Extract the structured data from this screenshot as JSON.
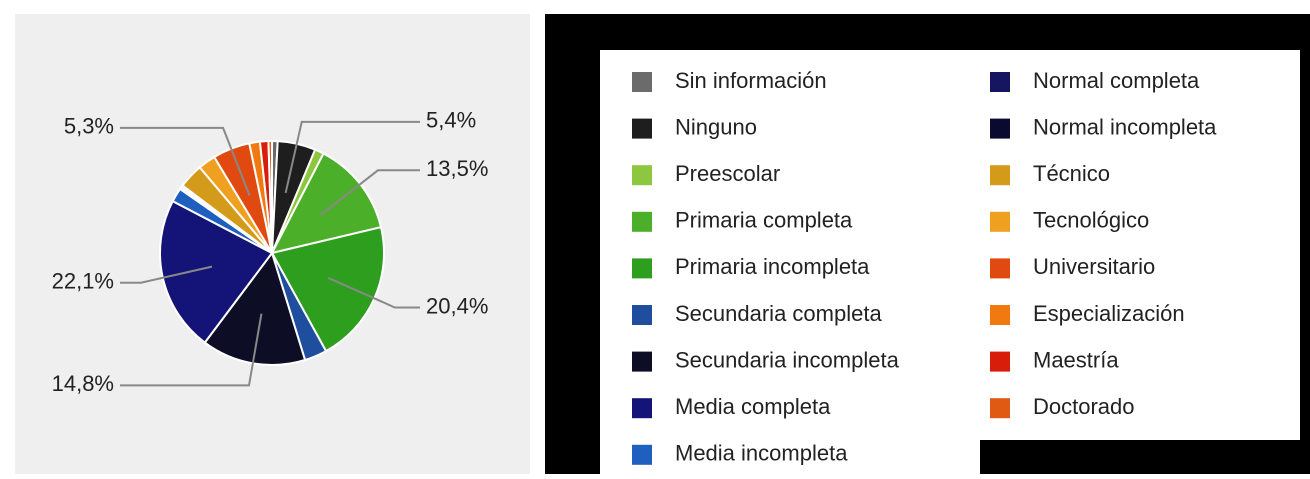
{
  "chart_data": {
    "type": "pie",
    "categories": [
      "Sin información",
      "Ninguno",
      "Preescolar",
      "Primaria completa",
      "Primaria incompleta",
      "Secundaria completa",
      "Secundaria incompleta",
      "Media completa",
      "Media incompleta",
      "Normal completa",
      "Normal incompleta",
      "Técnico",
      "Tecnológico",
      "Universitario",
      "Especialización",
      "Maestría",
      "Doctorado"
    ],
    "values": [
      0.8,
      5.4,
      1.3,
      13.5,
      20.4,
      3.2,
      14.8,
      22.1,
      2.0,
      0.3,
      0.3,
      3.5,
      2.5,
      5.3,
      1.5,
      1.2,
      0.5
    ],
    "value_labels": [
      null,
      "5,4%",
      null,
      "13,5%",
      "20,4%",
      null,
      "14,8%",
      "22,1%",
      null,
      null,
      null,
      null,
      null,
      "5,3%",
      null,
      null,
      null
    ],
    "colors": [
      "#6b6b6b",
      "#1e1e1e",
      "#8dc63f",
      "#4caf2a",
      "#2e9e1f",
      "#1f4e9e",
      "#0d0d26",
      "#141478",
      "#1f5fbf",
      "#151560",
      "#0a0a30",
      "#d49a1a",
      "#f0a020",
      "#e04a10",
      "#f07a10",
      "#d81e0a",
      "#e05a14"
    ],
    "legend": "right"
  }
}
